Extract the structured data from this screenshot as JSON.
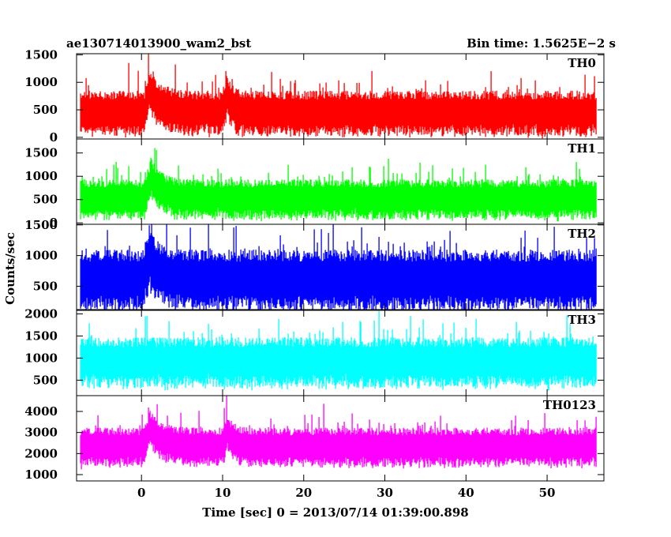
{
  "header": {
    "left": "ae130714013900_wam2_bst",
    "right": "Bin time: 1.5625E−2 s"
  },
  "colors": {
    "TH0": "#ff0000",
    "TH1": "#00ff00",
    "TH2": "#0000ff",
    "TH3": "#00ffff",
    "TH0123": "#ff00ff",
    "frame": "#000000"
  },
  "chart_data": {
    "type": "line",
    "xlabel": "Time [sec] 0 = 2013/07/14 01:39:00.898",
    "ylabel": "Counts/sec",
    "xlim": [
      -8,
      57
    ],
    "x_ticks": [
      0,
      10,
      20,
      30,
      40,
      50
    ],
    "x_range_data": [
      -7.5,
      56
    ],
    "bin_time": 0.015625,
    "panels": [
      {
        "name": "TH0",
        "ylim": [
          -30,
          1520
        ],
        "y_ticks": [
          0,
          500,
          1000,
          1500
        ],
        "baseline": 480,
        "noise": 230,
        "burst": [
          {
            "t": 0.8,
            "peak": 1500,
            "width": 1.4
          },
          {
            "t": 10.5,
            "peak": 1350,
            "width": 0.6
          }
        ]
      },
      {
        "name": "TH1",
        "ylim": [
          -30,
          1800
        ],
        "y_ticks": [
          0,
          500,
          1000,
          1500
        ],
        "baseline": 550,
        "noise": 240,
        "burst": [
          {
            "t": 1.0,
            "peak": 1750,
            "width": 1.2
          }
        ]
      },
      {
        "name": "TH2",
        "ylim": [
          120,
          1510
        ],
        "y_ticks": [
          500,
          1000,
          1500
        ],
        "baseline": 650,
        "noise": 280,
        "burst": [
          {
            "t": 0.8,
            "peak": 1500,
            "width": 1.3
          }
        ]
      },
      {
        "name": "TH3",
        "ylim": [
          150,
          2080
        ],
        "y_ticks": [
          500,
          1000,
          1500,
          2000
        ],
        "baseline": 960,
        "noise": 320,
        "burst": []
      },
      {
        "name": "TH0123",
        "ylim": [
          700,
          4750
        ],
        "y_ticks": [
          1000,
          2000,
          3000,
          4000
        ],
        "baseline": 2400,
        "noise": 520,
        "burst": [
          {
            "t": 0.8,
            "peak": 4700,
            "width": 1.4
          },
          {
            "t": 10.5,
            "peak": 4300,
            "width": 0.6
          }
        ]
      }
    ]
  }
}
